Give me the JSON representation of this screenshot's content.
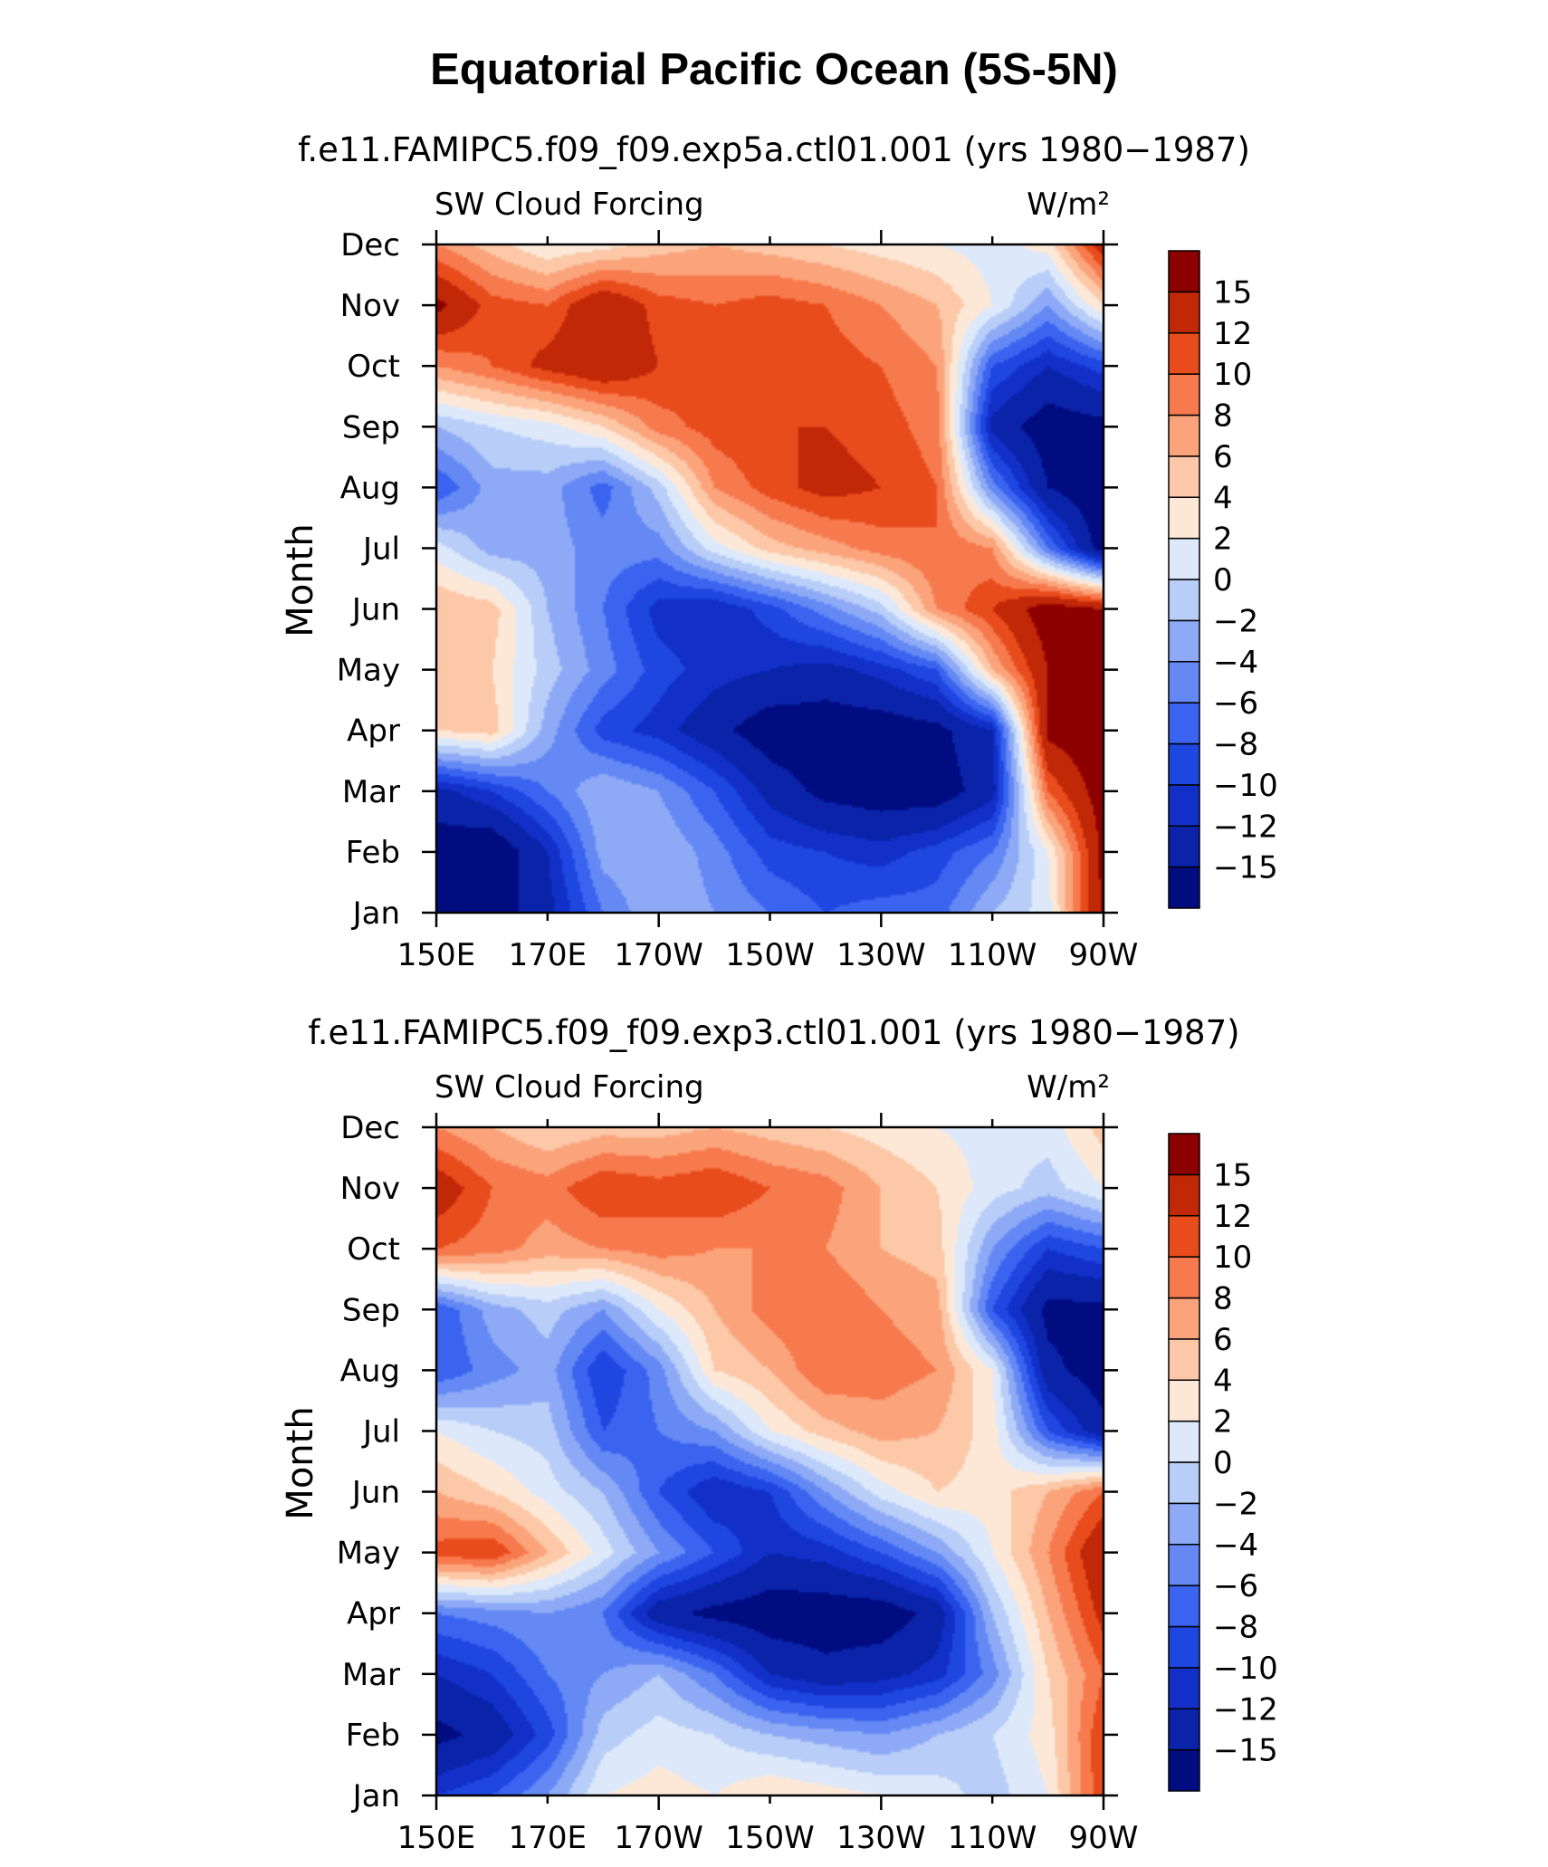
{
  "title": "Equatorial Pacific Ocean (5S-5N)",
  "panels": [
    {
      "subtitle": "f.e11.FAMIPC5.f09_f09.exp5a.ctl01.001 (yrs 1980−1987)",
      "variable": "SW Cloud Forcing",
      "units": "W/m²",
      "ylabel": "Month"
    },
    {
      "subtitle": "f.e11.FAMIPC5.f09_f09.exp3.ctl01.001 (yrs 1980−1987)",
      "variable": "SW Cloud Forcing",
      "units": "W/m²",
      "ylabel": "Month"
    }
  ],
  "chart_data": {
    "type": "heatmap",
    "x_ticks": [
      "150E",
      "170E",
      "170W",
      "150W",
      "130W",
      "110W",
      "90W"
    ],
    "y_ticks": [
      "Jan",
      "Feb",
      "Mar",
      "Apr",
      "May",
      "Jun",
      "Jul",
      "Aug",
      "Sep",
      "Oct",
      "Nov",
      "Dec"
    ],
    "xlim": [
      "150E",
      "90W"
    ],
    "ylim": [
      "Jan",
      "Dec"
    ],
    "colorbar": {
      "labels": [
        "15",
        "12",
        "10",
        "8",
        "6",
        "4",
        "2",
        "0",
        "−2",
        "−4",
        "−6",
        "−8",
        "−10",
        "−12",
        "−15"
      ],
      "levels": [
        -15,
        -12,
        -10,
        -8,
        -6,
        -4,
        -2,
        0,
        2,
        4,
        6,
        8,
        10,
        12,
        15
      ],
      "colors": [
        "#000c80",
        "#0a23a8",
        "#1230c8",
        "#1e46e0",
        "#3a64f0",
        "#6488f4",
        "#8eaaf6",
        "#b8cdf8",
        "#dde9fb",
        "#fde8d8",
        "#fcc8a8",
        "#fba47c",
        "#f77a4e",
        "#e94c1c",
        "#c02808",
        "#8c0000"
      ]
    },
    "grid_x_deg": [
      150,
      160,
      170,
      180,
      190,
      200,
      210,
      220,
      230,
      240,
      250,
      260,
      270
    ],
    "series": [
      {
        "values": [
          [
            -16,
            -17,
            -13,
            -6,
            -2,
            -4,
            -6,
            -8,
            -7,
            -7,
            -2,
            1,
            16
          ],
          [
            -17,
            -18,
            -12,
            -3,
            -2,
            -5,
            -9,
            -10,
            -11,
            -9,
            -6,
            2,
            16
          ],
          [
            -13,
            -10,
            -6,
            -2,
            -4,
            -8,
            -13,
            -16,
            -17,
            -17,
            -13,
            10,
            17
          ],
          [
            4,
            5,
            -3,
            -9,
            -11,
            -14,
            -17,
            -17,
            -17,
            -16,
            -12,
            16,
            18
          ],
          [
            5,
            4,
            -1,
            -5,
            -9,
            -11,
            -12,
            -13,
            -11,
            -8,
            6,
            15,
            18
          ],
          [
            6,
            5,
            -2,
            -6,
            -11,
            -12,
            -9,
            -5,
            -1,
            8,
            12,
            17,
            15
          ],
          [
            1,
            -3,
            -3,
            -5,
            -5,
            1,
            5,
            7,
            9,
            10,
            8,
            -6,
            -17
          ],
          [
            -8,
            -3,
            -3,
            -7,
            -1,
            8,
            11,
            13,
            12,
            10,
            -5,
            -15,
            -18
          ],
          [
            -2,
            0,
            1,
            4,
            9,
            11,
            12,
            12,
            11,
            9,
            -13,
            -17,
            -16
          ],
          [
            8,
            10,
            13,
            15,
            12,
            10,
            11,
            11,
            10,
            8,
            -8,
            -12,
            -9
          ],
          [
            16,
            11,
            10,
            15,
            11,
            10,
            11,
            10,
            8,
            6,
            2,
            -4,
            4
          ],
          [
            8,
            5,
            2,
            3,
            5,
            6,
            5,
            4,
            3,
            2,
            1,
            3,
            14
          ]
        ]
      },
      {
        "values": [
          [
            -10,
            -8,
            -4,
            2,
            3,
            2,
            4,
            3,
            2,
            1,
            -1,
            2,
            12
          ],
          [
            -16,
            -14,
            -9,
            -1,
            1,
            0,
            -2,
            -3,
            -4,
            -2,
            0,
            3,
            12
          ],
          [
            -12,
            -10,
            -6,
            -4,
            -2,
            -6,
            -12,
            -14,
            -13,
            -11,
            -5,
            4,
            10
          ],
          [
            -6,
            -5,
            -4,
            -6,
            -14,
            -16,
            -17,
            -17,
            -17,
            -14,
            -2,
            6,
            13
          ],
          [
            11,
            12,
            6,
            1,
            -4,
            -8,
            -12,
            -11,
            -8,
            -4,
            2,
            8,
            15
          ],
          [
            6,
            4,
            1,
            -2,
            -8,
            -12,
            -10,
            -4,
            1,
            4,
            3,
            6,
            10
          ],
          [
            2,
            0,
            -1,
            -8,
            -6,
            -4,
            2,
            5,
            7,
            6,
            3,
            -8,
            -14
          ],
          [
            -8,
            -5,
            -3,
            -10,
            -5,
            4,
            6,
            10,
            9,
            8,
            2,
            -14,
            -17
          ],
          [
            -8,
            -3,
            -1,
            -4,
            2,
            6,
            9,
            10,
            8,
            7,
            -8,
            -16,
            -16
          ],
          [
            10,
            9,
            7,
            8,
            9,
            8,
            8,
            8,
            6,
            5,
            -4,
            -10,
            -8
          ],
          [
            14,
            10,
            9,
            12,
            11,
            12,
            10,
            9,
            6,
            4,
            1,
            -1,
            2
          ],
          [
            8,
            6,
            4,
            5,
            5,
            6,
            5,
            4,
            3,
            2,
            1,
            1,
            5
          ]
        ]
      }
    ]
  }
}
